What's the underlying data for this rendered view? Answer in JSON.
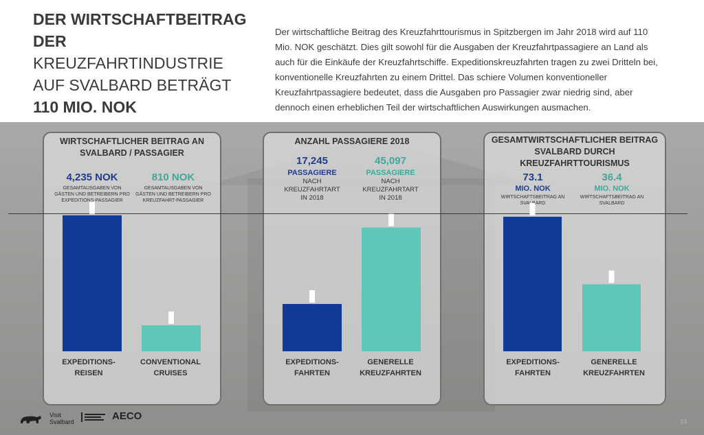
{
  "headline": {
    "line1": "DER WIRTSCHAFTBEITRAG",
    "line2": "DER",
    "line3": "KREUZFAHRTINDUSTRIE",
    "line4": "AUF SVALBARD BETRÄGT",
    "line5": "110 MIO. NOK"
  },
  "intro": "Der wirtschaftliche Beitrag des Kreuzfahrttourismus in Spitzbergen im Jahr 2018 wird auf 110 Mio. NOK geschätzt. Dies gilt sowohl für die Ausgaben der Kreuzfahrtpassagiere an Land als auch für die Einkäufe der Kreuzfahrtschiffe. Expeditionskreuzfahrten tragen zu zwei Dritteln bei, konventionelle Kreuzfahrten zu einem Drittel. Das schiere Volumen konventioneller Kreuzfahrtpassagiere bedeutet, dass die Ausgaben pro Passagier zwar niedrig sind, aber dennoch einen erheblichen Teil der wirtschaftlichen Auswirkungen ausmachen.",
  "panels": {
    "p1": {
      "title1": "WIRTSCHAFTLICHER BEITRAG AN",
      "title2": "SVALBARD / PASSAGIER",
      "a_value": "4,235 NOK",
      "a_desc1": "GESAMTAUSGABEN VON",
      "a_desc2": "GÄSTEN UND BETREIBERN PRO",
      "a_desc3": "EXPEDITIONS-PASSAGIER",
      "b_value": "810 NOK",
      "b_desc1": "GESAMTAUSGABEN VON",
      "b_desc2": "GÄSTEN UND BETREIBERN PRO",
      "b_desc3": "KREUZFAHRT-PASSAGIER",
      "cat_a1": "EXPEDITIONS-",
      "cat_a2": "REISEN",
      "cat_b1": "CONVENTIONAL",
      "cat_b2": "CRUISES"
    },
    "p2": {
      "title1": "ANZAHL PASSAGIERE 2018",
      "a_value": "17,245",
      "a_unit": "PASSAGIERE",
      "a_desc1": "NACH",
      "a_desc2": "KREUZFAHRTART",
      "a_desc3": "IN 2018",
      "b_value": "45,097",
      "b_unit": "PASSAGIERE",
      "b_desc1": "NACH",
      "b_desc2": "KREUZFAHRTART",
      "b_desc3": "IN 2018",
      "cat_a1": "EXPEDITIONS-",
      "cat_a2": "FAHRTEN",
      "cat_b1": "GENERELLE",
      "cat_b2": "KREUZFAHRTEN"
    },
    "p3": {
      "title1": "GESAMTWIRTSCHAFTLICHER BEITRAG",
      "title2": "SVALBARD DURCH",
      "title3": "KREUZFAHRTTOURISMUS",
      "a_value": "73.1",
      "a_unit": "MIO. NOK",
      "a_desc1": "WIRTSCHAFTSBEITRAG AN",
      "a_desc2": "SVALBARD",
      "b_value": "36.4",
      "b_unit": "MIO. NOK",
      "b_desc1": "WIRTSCHAFTSBEITRAG AN",
      "b_desc2": "SVALBARD",
      "cat_a1": "EXPEDITIONS-",
      "cat_a2": "FAHRTEN",
      "cat_b1": "GENERELLE",
      "cat_b2": "KREUZFAHRTEN"
    }
  },
  "footer": {
    "logo1": "Visit",
    "logo2": "Svalbard",
    "aeco": "AECO",
    "page": "53"
  },
  "colors": {
    "expedition": "#123a99",
    "conventional": "#5ec7b8"
  },
  "chart_data": [
    {
      "type": "bar",
      "categories": [
        "EXPEDITIONS-REISEN",
        "CONVENTIONAL CRUISES"
      ],
      "values": [
        4235,
        810
      ],
      "ylim": [
        0,
        4700
      ]
    },
    {
      "type": "bar",
      "categories": [
        "EXPEDITIONS-FAHRTEN",
        "GENERELLE KREUZFAHRTEN"
      ],
      "values": [
        17245,
        45097
      ],
      "ylim": [
        0,
        55000
      ]
    },
    {
      "type": "bar",
      "categories": [
        "EXPEDITIONS-FAHRTEN",
        "GENERELLE KREUZFAHRTEN"
      ],
      "values": [
        73.1,
        36.4
      ],
      "ylim": [
        0,
        82
      ]
    }
  ]
}
